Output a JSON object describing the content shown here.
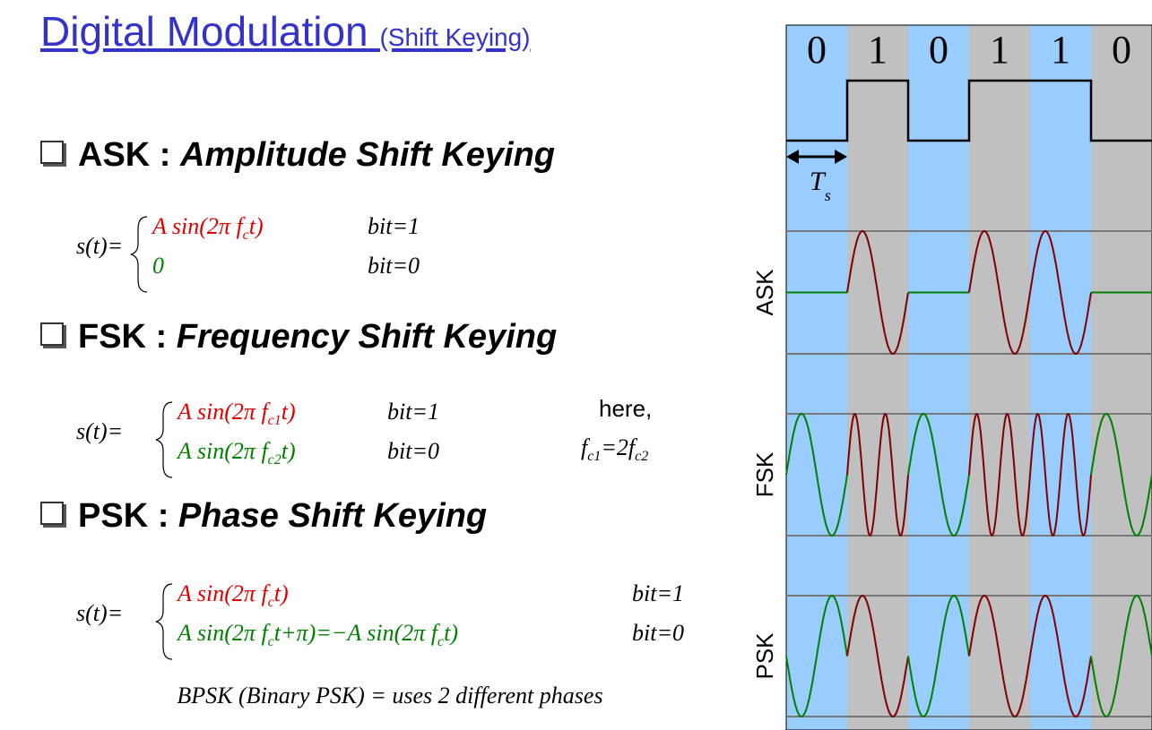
{
  "title": "Digital Modulation",
  "subtitle": "(Shift Keying)",
  "sections": [
    {
      "label": "ASK :",
      "name": "Amplitude Shift Keying",
      "formula": {
        "lhs": "s(t)=",
        "rows": [
          {
            "expr": [
              "A sin(2π f",
              {
                "sub": "c"
              },
              "t)"
            ],
            "cond": "bit=1"
          },
          {
            "expr": [
              "0"
            ],
            "cond": "bit=0"
          }
        ]
      }
    },
    {
      "label": "FSK :",
      "name": "Frequency Shift Keying",
      "formula": {
        "lhs": "s(t)=",
        "rows": [
          {
            "expr": [
              "A sin(2π f",
              {
                "sub": "c1"
              },
              "t)"
            ],
            "cond": "bit=1"
          },
          {
            "expr": [
              "A sin(2π f",
              {
                "sub": "c2"
              },
              "t)"
            ],
            "cond": "bit=0"
          }
        ]
      },
      "note": {
        "text": "here,",
        "expr": [
          "f",
          {
            "sub": "c1"
          },
          "=2f",
          {
            "sub": "c2"
          }
        ]
      }
    },
    {
      "label": "PSK :",
      "name": "Phase Shift Keying",
      "formula": {
        "lhs": "s(t)=",
        "rows": [
          {
            "expr": [
              "A sin(2π f",
              {
                "sub": "c"
              },
              "t)"
            ],
            "cond": "bit=1"
          },
          {
            "expr": [
              "A sin(2π f",
              {
                "sub": "c"
              },
              "t+π)=−A sin(2π f",
              {
                "sub": "c"
              },
              "t)"
            ],
            "cond": "bit=0"
          }
        ]
      },
      "footnote": "BPSK (Binary PSK) = uses 2 different phases"
    }
  ],
  "diagram": {
    "bits": [
      "0",
      "1",
      "0",
      "1",
      "1",
      "0"
    ],
    "period": {
      "main": "T",
      "sub": "s"
    },
    "rows": [
      "ASK",
      "FSK",
      "PSK"
    ]
  }
}
